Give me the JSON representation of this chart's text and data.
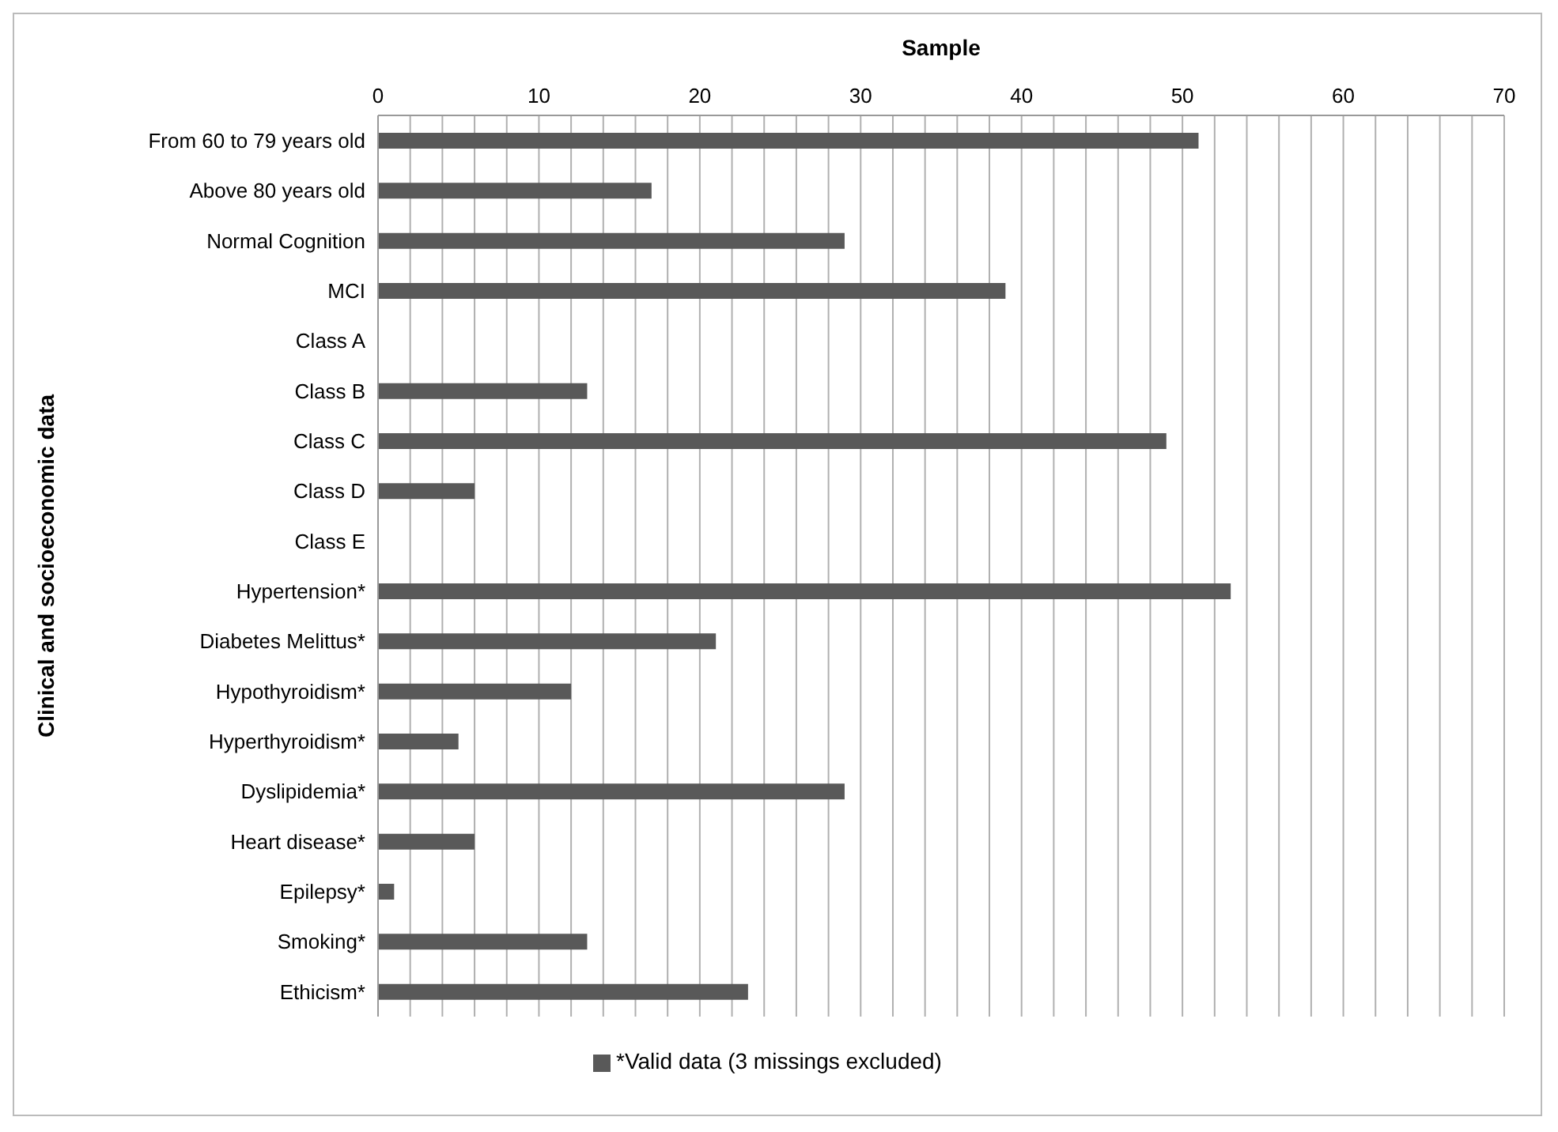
{
  "chart_data": {
    "type": "bar",
    "orientation": "horizontal",
    "xlabel": "Sample",
    "ylabel": "Clinical and socioeconomic data",
    "categories": [
      "From 60 to 79 years old",
      "Above 80 years old",
      "Normal Cognition",
      "MCI",
      "Class A",
      "Class B",
      "Class C",
      "Class D",
      "Class E",
      "Hypertension*",
      "Diabetes Melittus*",
      "Hypothyroidism*",
      "Hyperthyroidism*",
      "Dyslipidemia*",
      "Heart disease*",
      "Epilepsy*",
      "Smoking*",
      "Ethicism*"
    ],
    "series": [
      {
        "name": "*Valid data (3 missings excluded)",
        "color": "#595959",
        "values": [
          51,
          17,
          29,
          39,
          0,
          13,
          49,
          6,
          0,
          53,
          21,
          12,
          5,
          29,
          6,
          1,
          13,
          23
        ]
      }
    ],
    "xlim": [
      0,
      70
    ],
    "xticks": [
      0,
      {
        "value": 2,
        "label": null
      },
      {
        "value": 4,
        "label": null
      },
      {
        "value": 6,
        "label": null
      },
      {
        "value": 8,
        "label": null
      },
      10,
      {
        "value": 12,
        "label": null
      },
      {
        "value": 14,
        "label": null
      },
      {
        "value": 16,
        "label": null
      },
      {
        "value": 18,
        "label": null
      },
      20,
      {
        "value": 22,
        "label": null
      },
      {
        "value": 24,
        "label": null
      },
      {
        "value": 26,
        "label": null
      },
      {
        "value": 28,
        "label": null
      },
      30,
      {
        "value": 32,
        "label": null
      },
      {
        "value": 34,
        "label": null
      },
      {
        "value": 36,
        "label": null
      },
      {
        "value": 38,
        "label": null
      },
      40,
      {
        "value": 42,
        "label": null
      },
      {
        "value": 44,
        "label": null
      },
      {
        "value": 46,
        "label": null
      },
      {
        "value": 48,
        "label": null
      },
      50,
      {
        "value": 52,
        "label": null
      },
      {
        "value": 54,
        "label": null
      },
      {
        "value": 56,
        "label": null
      },
      {
        "value": 58,
        "label": null
      },
      60,
      {
        "value": 62,
        "label": null
      },
      {
        "value": 64,
        "label": null
      },
      {
        "value": 66,
        "label": null
      },
      {
        "value": 68,
        "label": null
      },
      70
    ],
    "grid": "x",
    "legend": "bottom"
  }
}
